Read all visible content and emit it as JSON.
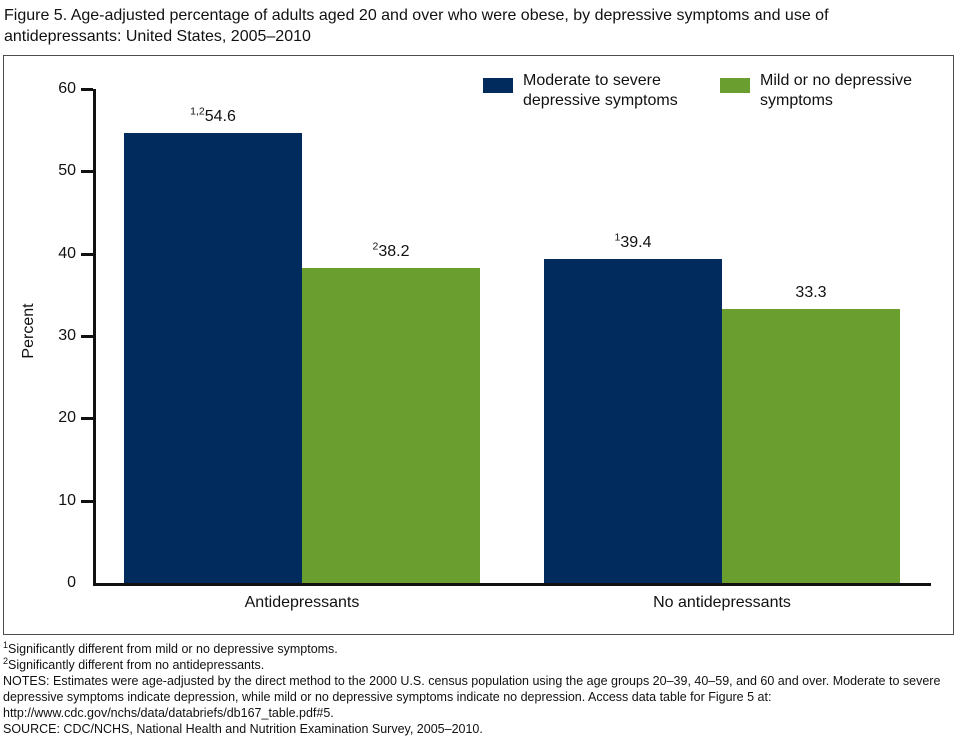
{
  "title": "Figure 5. Age-adjusted percentage of adults aged 20 and over who were obese, by depressive symptoms and use of antidepressants: United States, 2005–2010",
  "colors": {
    "navy": "#002b5c",
    "green": "#6a9e2f",
    "axis": "#111111",
    "frame_border": "#4d4d4d"
  },
  "legend": {
    "items": [
      {
        "line1": "Moderate to severe",
        "line2": "depressive symptoms",
        "color": "#002b5c"
      },
      {
        "line1": "Mild or no depressive",
        "line2": "symptoms",
        "color": "#6a9e2f"
      }
    ]
  },
  "chart_data": {
    "type": "bar",
    "title": "Figure 5. Age-adjusted percentage of adults aged 20 and over who were obese, by depressive symptoms and use of antidepressants: United States, 2005–2010",
    "categories": [
      "Antidepressants",
      "No antidepressants"
    ],
    "series": [
      {
        "name": "Moderate to severe depressive symptoms",
        "color": "#002b5c",
        "values": [
          54.6,
          39.4
        ],
        "labels": [
          {
            "sup": "1,2",
            "value": "54.6"
          },
          {
            "sup": "1",
            "value": "39.4"
          }
        ]
      },
      {
        "name": "Mild or no depressive symptoms",
        "color": "#6a9e2f",
        "values": [
          38.2,
          33.3
        ],
        "labels": [
          {
            "sup": "2",
            "value": "38.2"
          },
          {
            "sup": "",
            "value": "33.3"
          }
        ]
      }
    ],
    "xlabel": "",
    "ylabel": "Percent",
    "ylim": [
      0,
      60
    ],
    "yticks": [
      0,
      10,
      20,
      30,
      40,
      50,
      60
    ],
    "grid": false,
    "legend_position": "top-inside"
  },
  "footnotes": {
    "fn1": {
      "sup": "1",
      "text": "Significantly different from mild or no depressive symptoms."
    },
    "fn2": {
      "sup": "2",
      "text": "Significantly different from no antidepressants."
    },
    "notes": "NOTES: Estimates were age-adjusted by the direct method to the 2000 U.S. census population using the age groups 20–39, 40–59, and 60 and over. Moderate to severe depressive symptoms indicate depression, while mild or no depressive symptoms indicate no depression. Access data table for Figure 5 at: http://www.cdc.gov/nchs/data/databriefs/db167_table.pdf#5.",
    "source": "SOURCE: CDC/NCHS, National Health and Nutrition Examination Survey, 2005–2010."
  }
}
